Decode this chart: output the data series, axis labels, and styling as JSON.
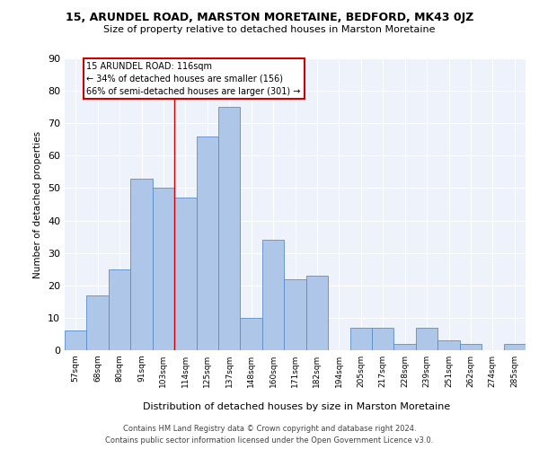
{
  "title_line1": "15, ARUNDEL ROAD, MARSTON MORETAINE, BEDFORD, MK43 0JZ",
  "title_line2": "Size of property relative to detached houses in Marston Moretaine",
  "xlabel": "Distribution of detached houses by size in Marston Moretaine",
  "ylabel": "Number of detached properties",
  "categories": [
    "57sqm",
    "68sqm",
    "80sqm",
    "91sqm",
    "103sqm",
    "114sqm",
    "125sqm",
    "137sqm",
    "148sqm",
    "160sqm",
    "171sqm",
    "182sqm",
    "194sqm",
    "205sqm",
    "217sqm",
    "228sqm",
    "239sqm",
    "251sqm",
    "262sqm",
    "274sqm",
    "285sqm"
  ],
  "values": [
    6,
    17,
    25,
    53,
    50,
    47,
    66,
    75,
    10,
    34,
    22,
    23,
    0,
    7,
    7,
    2,
    7,
    3,
    2,
    0,
    2
  ],
  "bar_color": "#aec6e8",
  "bar_edge_color": "#5b8dc8",
  "ylim": [
    0,
    90
  ],
  "yticks": [
    0,
    10,
    20,
    30,
    40,
    50,
    60,
    70,
    80,
    90
  ],
  "annotation_title": "15 ARUNDEL ROAD: 116sqm",
  "annotation_line1": "← 34% of detached houses are smaller (156)",
  "annotation_line2": "66% of semi-detached houses are larger (301) →",
  "annotation_box_color": "#ffffff",
  "annotation_box_edge_color": "#cc0000",
  "footer_line1": "Contains HM Land Registry data © Crown copyright and database right 2024.",
  "footer_line2": "Contains public sector information licensed under the Open Government Licence v3.0.",
  "background_color": "#eef2fb",
  "grid_color": "#ffffff",
  "red_line_color": "#cc0000"
}
